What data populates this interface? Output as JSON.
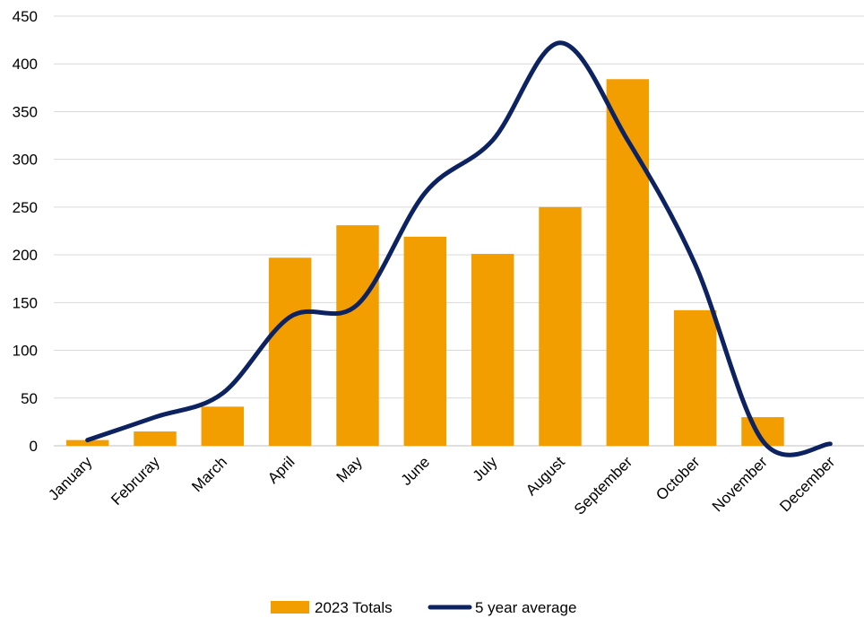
{
  "chart_data": {
    "type": "bar",
    "title": "",
    "xlabel": "",
    "ylabel": "",
    "categories": [
      "January",
      "Februray",
      "March",
      "April",
      "May",
      "June",
      "July",
      "August",
      "September",
      "October",
      "November",
      "December"
    ],
    "series": [
      {
        "name": "2023 Totals",
        "type": "bar",
        "color": "#F29E00",
        "values": [
          6,
          15,
          41,
          197,
          231,
          219,
          201,
          250,
          384,
          142,
          30,
          0
        ]
      },
      {
        "name": "5 year average",
        "type": "line",
        "smooth": true,
        "color": "#0D2260",
        "values": [
          6,
          30,
          55,
          135,
          148,
          265,
          320,
          422,
          320,
          190,
          5,
          2
        ]
      }
    ],
    "ylim": [
      0,
      450
    ],
    "yticks": [
      0,
      50,
      100,
      150,
      200,
      250,
      300,
      350,
      400,
      450
    ],
    "grid": true,
    "legend": "bottom"
  }
}
